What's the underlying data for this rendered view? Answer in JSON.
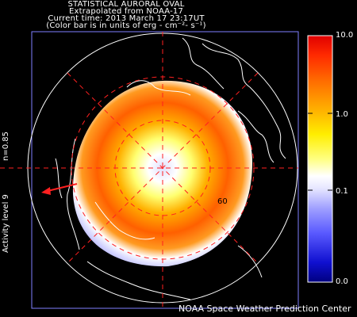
{
  "header": {
    "title": "STATISTICAL AURORAL OVAL",
    "source": "Extrapolated from NOAA-17",
    "time_line": "Current time: 2013 March 17 23:17UT",
    "units_line": "(Color bar is in units of erg - cm⁻²- s⁻¹)"
  },
  "left_labels": {
    "n_value": "n=0.85",
    "activity": "Activity level 9"
  },
  "colorbar": {
    "labels": [
      "10.0",
      "1.0",
      "0.1",
      "0.0"
    ],
    "colors": [
      "#000080",
      "#1010d0",
      "#5a5aff",
      "#a0a0ff",
      "#e6e6ff",
      "#ffffff",
      "#ffff80",
      "#ffee00",
      "#ffb000",
      "#ff6a00",
      "#ff2a00",
      "#e00000"
    ]
  },
  "map": {
    "latitude_label": "60",
    "grid_color": "#ff2020",
    "arrow_color": "#ff2020",
    "coastline_color": "#ffffff"
  },
  "footer": {
    "credit": "NOAA Space Weather Prediction Center"
  }
}
